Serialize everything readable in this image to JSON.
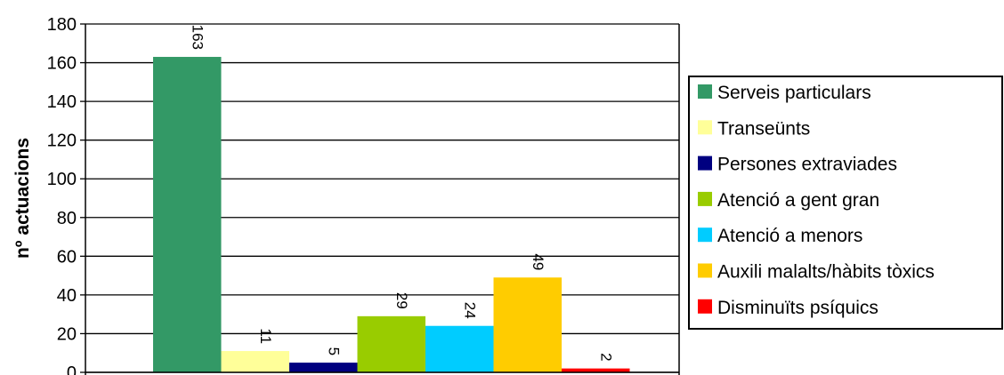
{
  "chart_data": {
    "type": "bar",
    "ylabel": "nº actuacions",
    "xlabel": "",
    "ylim": [
      0,
      180
    ],
    "yticks": [
      0,
      20,
      40,
      60,
      80,
      100,
      120,
      140,
      160,
      180
    ],
    "grid": true,
    "legend_position": "right",
    "series": [
      {
        "name": "Serveis particulars",
        "value": 163,
        "label": "163",
        "color": "#339966"
      },
      {
        "name": "Transeünts",
        "value": 11,
        "label": "11",
        "color": "#FFFF99"
      },
      {
        "name": "Persones extraviades",
        "value": 5,
        "label": "5",
        "color": "#000080"
      },
      {
        "name": "Atenció a gent gran",
        "value": 29,
        "label": "29",
        "color": "#99CC00"
      },
      {
        "name": "Atenció a menors",
        "value": 24,
        "label": "24",
        "color": "#00CCFF"
      },
      {
        "name": "Auxili malalts/hàbits tòxics",
        "value": 49,
        "label": "49",
        "color": "#FFCC00"
      },
      {
        "name": "Disminuïts psíquics",
        "value": 2,
        "label": "2",
        "color": "#FF0000"
      }
    ]
  }
}
